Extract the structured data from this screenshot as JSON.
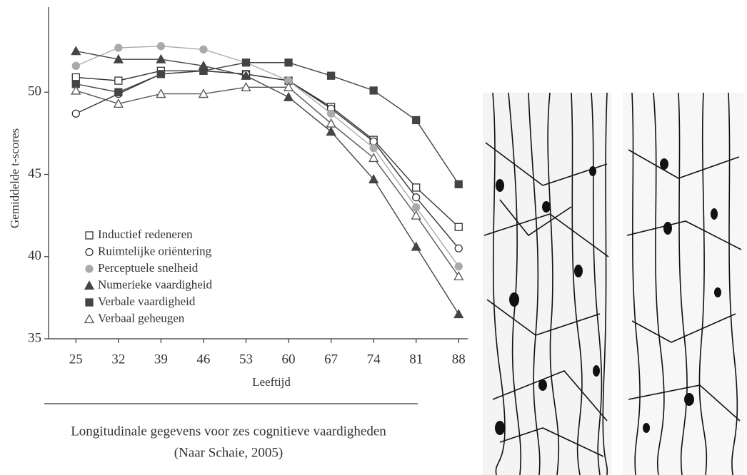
{
  "chart_data": {
    "type": "line",
    "x_label": "Leeftijd",
    "y_label": "Gemiddelde t-scores",
    "caption": [
      "Longitudinale gegevens voor zes cognitieve vaardigheden",
      "(Naar Schaie, 2005)"
    ],
    "x": [
      25,
      32,
      39,
      46,
      53,
      60,
      67,
      74,
      81,
      88
    ],
    "xlim": [
      20.5,
      89.5
    ],
    "xticks": [
      25,
      32,
      39,
      46,
      53,
      60,
      67,
      74,
      81,
      88
    ],
    "ylim": [
      35,
      55
    ],
    "yticks": [
      35,
      40,
      45,
      50
    ],
    "legend_position": "lower left",
    "series": [
      {
        "name": "Inductief redeneren",
        "marker": "square",
        "filled": false,
        "color": "#333333",
        "values": [
          50.9,
          50.7,
          51.3,
          51.3,
          51.1,
          50.7,
          49.1,
          47.1,
          44.2,
          41.8
        ]
      },
      {
        "name": "Ruimtelijke oriëntering",
        "marker": "circle",
        "filled": false,
        "color": "#333333",
        "values": [
          48.7,
          49.9,
          51.1,
          51.3,
          51.1,
          50.7,
          49.0,
          47.0,
          43.6,
          40.5
        ]
      },
      {
        "name": "Perceptuele snelheid",
        "marker": "circle",
        "filled": true,
        "color": "#aaaaaa",
        "values": [
          51.6,
          52.7,
          52.8,
          52.6,
          51.8,
          50.7,
          48.7,
          46.6,
          43.0,
          39.4
        ]
      },
      {
        "name": "Numerieke vaardigheid",
        "marker": "triangle",
        "filled": true,
        "color": "#444444",
        "values": [
          52.5,
          52.0,
          52.0,
          51.6,
          51.0,
          49.7,
          47.6,
          44.7,
          40.6,
          36.5
        ]
      },
      {
        "name": "Verbale vaardigheid",
        "marker": "square",
        "filled": true,
        "color": "#444444",
        "values": [
          50.5,
          50.0,
          51.1,
          51.3,
          51.8,
          51.8,
          51.0,
          50.1,
          48.3,
          44.4
        ]
      },
      {
        "name": "Verbaal geheugen",
        "marker": "triangle",
        "filled": false,
        "color": "#555555",
        "values": [
          50.1,
          49.3,
          49.9,
          49.9,
          50.3,
          50.3,
          48.1,
          46.0,
          42.5,
          38.8
        ]
      }
    ]
  }
}
